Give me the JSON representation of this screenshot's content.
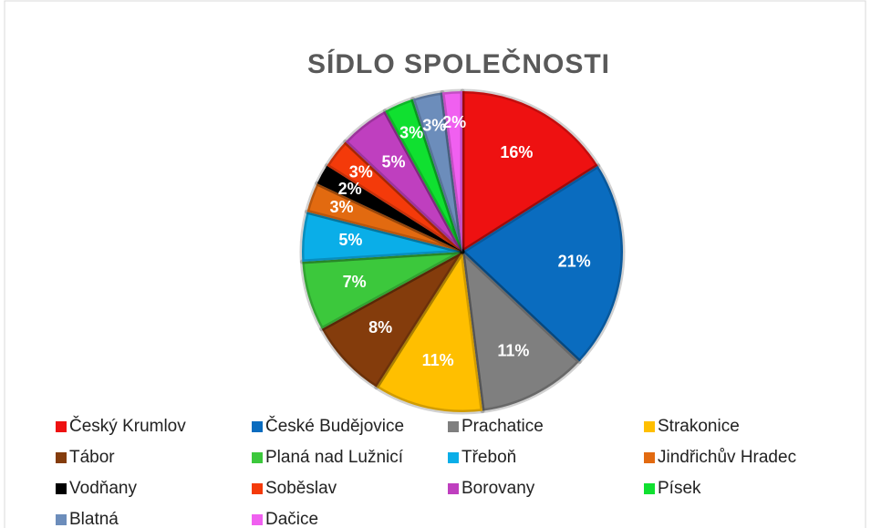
{
  "chart_data": {
    "type": "pie",
    "title": "SÍDLO SPOLEČNOSTI",
    "categories": [
      "Český Krumlov",
      "České Budějovice",
      "Prachatice",
      "Strakonice",
      "Tábor",
      "Planá nad Lužnicí",
      "Třeboň",
      "Jindřichův Hradec",
      "Vodňany",
      "Soběslav",
      "Borovany",
      "Písek",
      "Blatná",
      "Dačice"
    ],
    "values": [
      16,
      21,
      11,
      11,
      8,
      7,
      5,
      3,
      2,
      3,
      5,
      3,
      3,
      2
    ],
    "value_labels": [
      "16%",
      "21%",
      "11%",
      "11%",
      "8%",
      "7%",
      "5%",
      "3%",
      "2%",
      "3%",
      "5%",
      "3%",
      "3%",
      "2%"
    ],
    "colors": [
      "#ee1111",
      "#0a6cbf",
      "#7f7f7f",
      "#ffbf00",
      "#843c0c",
      "#3cc83c",
      "#0aaee8",
      "#e26a10",
      "#000000",
      "#f43a0a",
      "#bf3fbf",
      "#10e030",
      "#6c8dbb",
      "#f060f0"
    ],
    "legend": "bottom"
  }
}
